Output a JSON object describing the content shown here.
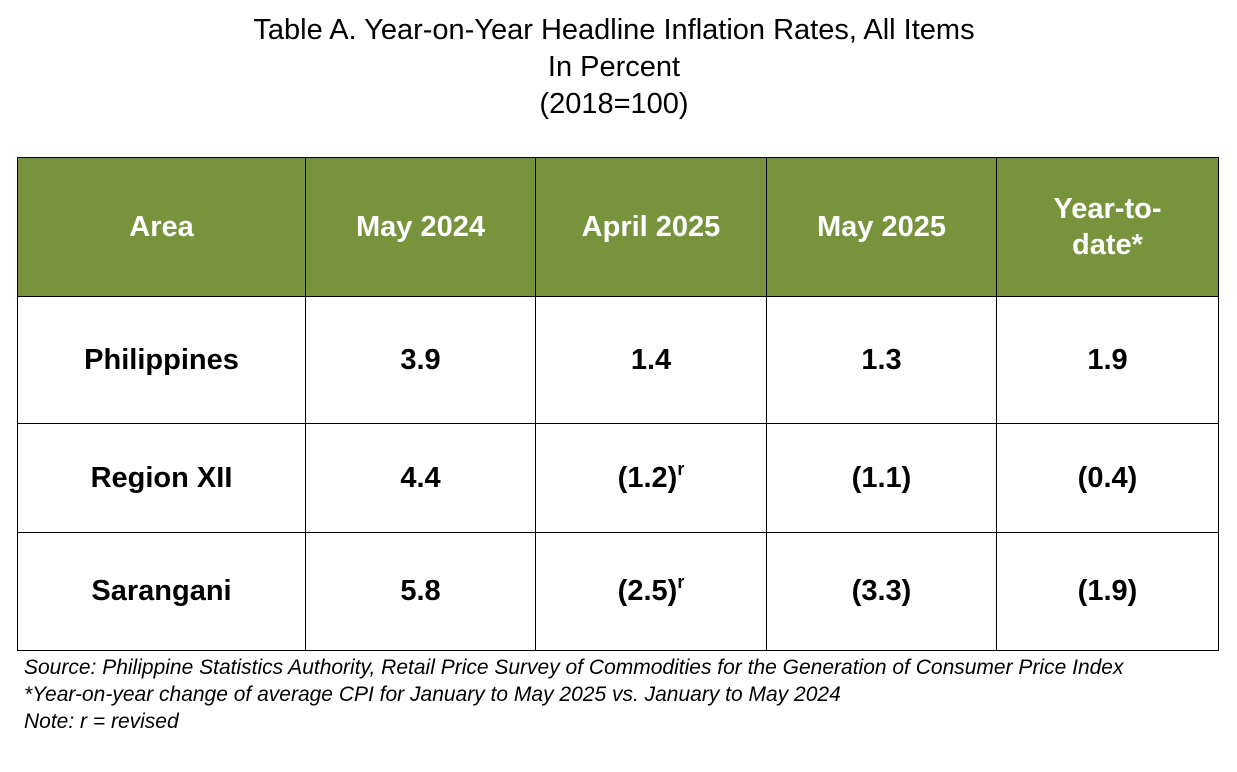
{
  "title": {
    "line1": "Table A. Year-on-Year Headline Inflation Rates, All Items",
    "line2": "In Percent",
    "line3": "(2018=100)"
  },
  "table": {
    "headers": [
      "Area",
      "May 2024",
      "April 2025",
      "May 2025",
      "Year-to-date*"
    ],
    "rows": [
      {
        "area": "Philippines",
        "may_2024": "3.9",
        "april_2025": "1.4",
        "april_2025_mark": "",
        "may_2025": "1.3",
        "ytd": "1.9"
      },
      {
        "area": "Region XII",
        "may_2024": "4.4",
        "april_2025": "(1.2)",
        "april_2025_mark": "r",
        "may_2025": "(1.1)",
        "ytd": "(0.4)"
      },
      {
        "area": "Sarangani",
        "may_2024": "5.8",
        "april_2025": "(2.5)",
        "april_2025_mark": "r",
        "may_2025": "(3.3)",
        "ytd": "(1.9)"
      }
    ]
  },
  "notes": {
    "source": "Source: Philippine Statistics Authority, Retail Price Survey of Commodities for the Generation of Consumer Price Index",
    "ytd_note": "*Year-on-year change of average CPI for January to May 2025 vs. January to May 2024",
    "revised_note": "Note: r = revised"
  },
  "colors": {
    "header_background": "#77933c",
    "header_text": "#ffffff",
    "border": "#000000"
  }
}
